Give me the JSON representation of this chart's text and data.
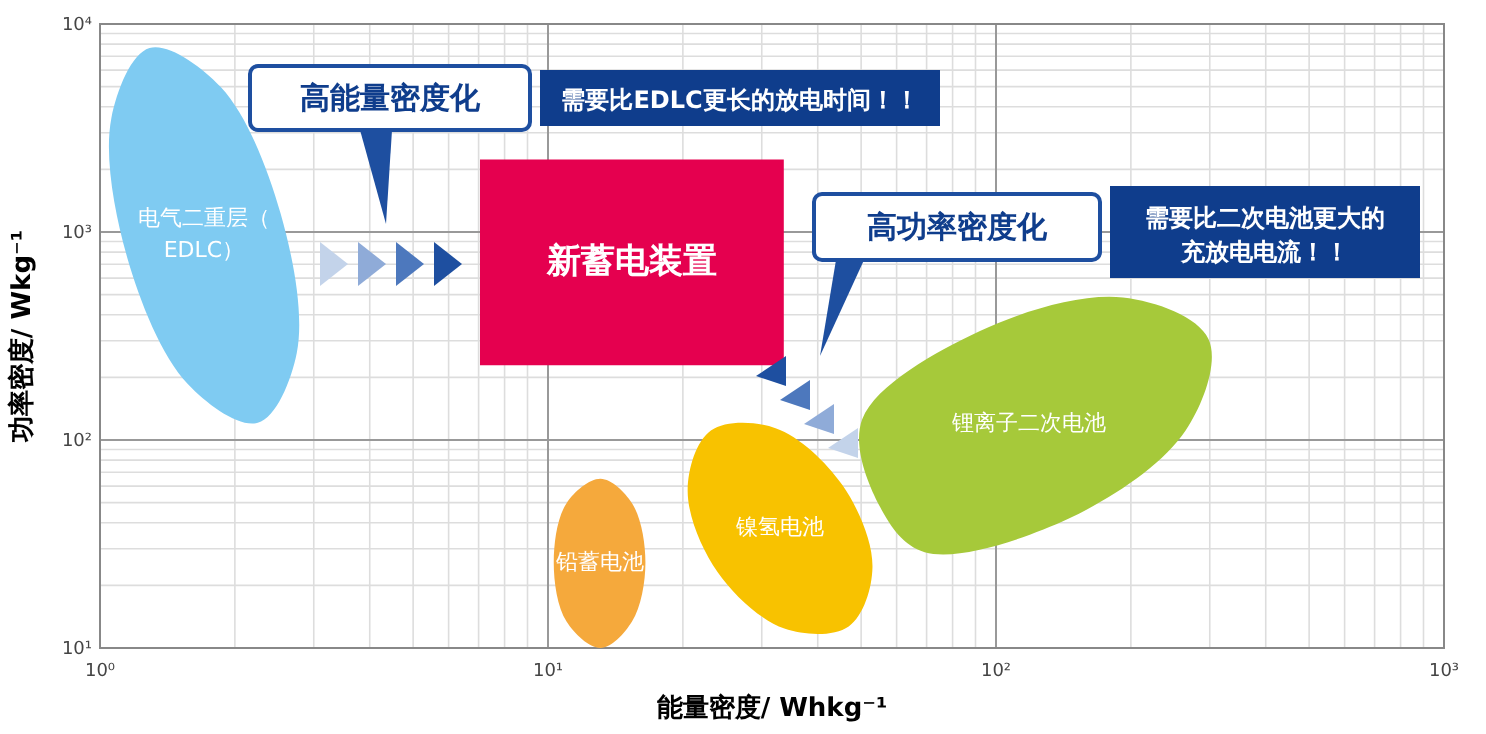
{
  "chart_data": {
    "type": "area",
    "xlabel": "能量密度/ Whkg⁻¹",
    "ylabel": "功率密度/ Wkg⁻¹",
    "log": "xy",
    "grid": true,
    "xlim": [
      1,
      1000
    ],
    "xticks": [
      {
        "value": 1,
        "label": "10⁰"
      },
      {
        "value": 10,
        "label": "10¹"
      },
      {
        "value": 100,
        "label": "10²"
      },
      {
        "value": 1000,
        "label": "10³"
      }
    ],
    "ylim": [
      10,
      10000
    ],
    "yticks": [
      {
        "value": 10,
        "label": "10¹"
      },
      {
        "value": 100,
        "label": "10²"
      },
      {
        "value": 1000,
        "label": "10³"
      },
      {
        "value": 10000,
        "label": "10⁴"
      }
    ],
    "series": [
      {
        "name": "电气二重层（EDLC）",
        "color": "#7fcbf2",
        "x": [
          2.25,
          2.75,
          2.53,
          1.86,
          1.29,
          1.06,
          1.15,
          1.57
        ],
        "values": [
          121,
          263,
          1227,
          4980,
          7670,
          3525,
          755,
          186
        ]
      },
      {
        "name": "新蓄电装置",
        "color": "#e5004f",
        "x": [
          7.05,
          33.6,
          33.6,
          7.05
        ],
        "values": [
          2230,
          2230,
          229,
          229
        ]
      },
      {
        "name": "铅蓄电池",
        "color": "#f5a93c",
        "x": [
          13.1,
          15.4,
          16.5,
          15.4,
          13.1,
          11.0,
          10.3,
          11.0
        ],
        "values": [
          10,
          13.4,
          25.8,
          49.7,
          65.2,
          49.7,
          25.8,
          13.4
        ]
      },
      {
        "name": "锂离子二次电池",
        "color": "#a6c93a",
        "x": [
          298,
          265,
          145,
          69.3,
          55,
          50.3,
          92.1,
          192
        ],
        "values": [
          306,
          111,
          41.8,
          28.9,
          48,
          126,
          334,
          484
        ]
      },
      {
        "name": "镍氢电池",
        "color": "#f8c200",
        "x": [
          46.9,
          53.0,
          45.4,
          32.2,
          23.1,
          20.5,
          23.9,
          33.7
        ],
        "values": [
          12.7,
          24.5,
          60.7,
          114,
          111,
          57.4,
          23.2,
          12.4
        ]
      }
    ],
    "annotations": [
      "高能量密度化",
      "需要比EDLC更长的放电时间！！",
      "高功率密度化",
      "需要比二次电池更大的充放电电流！！"
    ]
  }
}
